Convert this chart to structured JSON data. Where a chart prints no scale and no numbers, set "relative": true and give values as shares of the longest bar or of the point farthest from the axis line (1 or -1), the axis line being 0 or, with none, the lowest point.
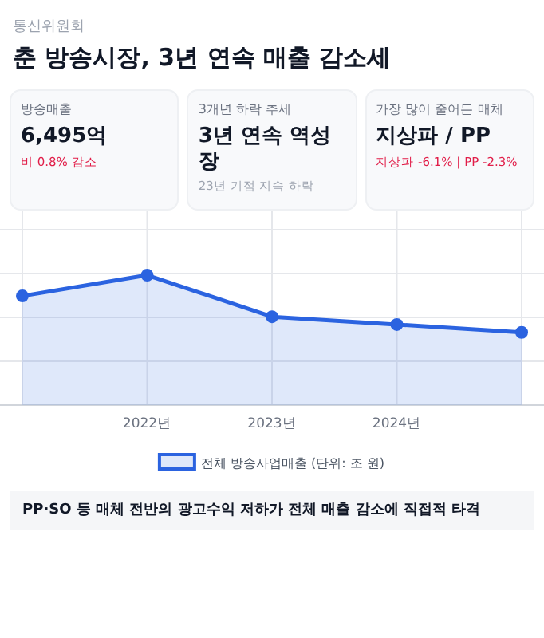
{
  "chart_data": [
    {
      "type": "other",
      "subtitle": "통신위원회",
      "title": "춘 방송시장, 3년 연속 매출 감소세"
    },
    {
      "type": "other",
      "subtitle": "방송매출",
      "title": "6,495억",
      "annotations": [
        "비 0.8% 감소"
      ]
    },
    {
      "type": "other",
      "subtitle": "3개년 하락 추세",
      "title": "3년 연속 역성장",
      "annotations": [
        "23년 기점 지속 하락"
      ]
    },
    {
      "type": "other",
      "subtitle": "가장 많이 줄어든 매체",
      "title": "지상파 / PP",
      "annotations": [
        "지상파 -6.1% | PP -2.3%"
      ]
    },
    {
      "type": "area",
      "relative": true,
      "categories": [
        null,
        "2022년",
        "2023년",
        "2024년",
        null
      ],
      "series": [
        {
          "name": "전체 방송사업매출 (단위: 조 원)",
          "color": "#2b63e0",
          "values": [
            0.84,
            1,
            0.68,
            0.62,
            0.56
          ]
        }
      ],
      "grid": true,
      "marker": "circle",
      "legend": "bottom",
      "annotations": [
        "PP·SO 등 매체 전반의 광고수익 저하가 전체 매출 감소에 직접적 타격"
      ]
    }
  ]
}
